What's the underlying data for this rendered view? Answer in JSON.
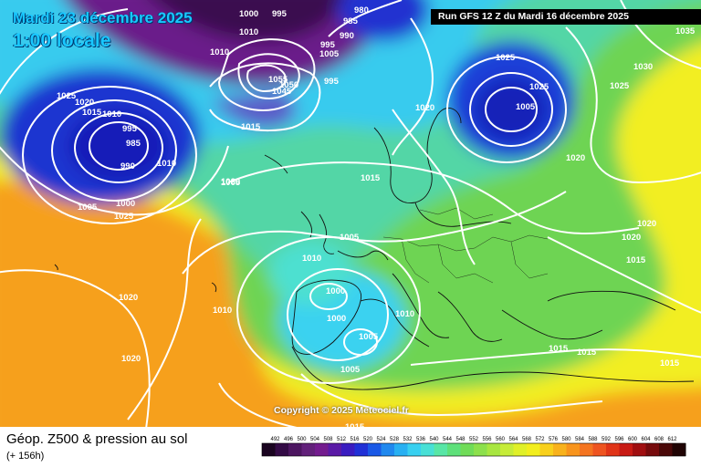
{
  "header": {
    "date_label": "Mardi 23 décembre 2025",
    "local_time": "1:00 locale",
    "run_label": "Run GFS 12 Z du Mardi 16 décembre 2025"
  },
  "map": {
    "copyright": "Copyright © 2025 Meteociel.fr",
    "pressure_labels": [
      "1000",
      "1010",
      "995",
      "980",
      "985",
      "990",
      "1010",
      "995",
      "1005",
      "1055",
      "1050",
      "1045",
      "995",
      "1015",
      "1025",
      "1020",
      "1015",
      "1010",
      "995",
      "985",
      "990",
      "1010",
      "1005",
      "1000",
      "1005",
      "1025",
      "1015",
      "1005",
      "1010",
      "1020",
      "1025",
      "1025",
      "1035",
      "1030",
      "1025",
      "1020",
      "1020",
      "1020",
      "1015",
      "1005",
      "1000",
      "1000",
      "1005",
      "1010",
      "1005",
      "1015",
      "1015",
      "1015",
      "1015",
      "1020",
      "1020",
      "1010",
      "1020"
    ],
    "colors": {
      "deep_purple": "#2a0a3a",
      "purple": "#6a1a86",
      "blue": "#1428c8",
      "cyan": "#3ad2f0",
      "green": "#4ec850",
      "yellow": "#eef020",
      "orange": "#f7a21a"
    }
  },
  "footer": {
    "param_title": "Géop. Z500 & pression au sol",
    "forecast_hour": "(+ 156h)",
    "legend": {
      "ticks": [
        "492",
        "496",
        "500",
        "504",
        "508",
        "512",
        "516",
        "520",
        "524",
        "528",
        "532",
        "536",
        "540",
        "544",
        "548",
        "552",
        "556",
        "560",
        "564",
        "568",
        "572",
        "576",
        "580",
        "584",
        "588",
        "592",
        "596",
        "600",
        "604",
        "608",
        "612"
      ],
      "colors": [
        "#1a0420",
        "#330a45",
        "#4c1560",
        "#62207a",
        "#731b8e",
        "#5a1aa6",
        "#3a1cc0",
        "#2030d6",
        "#1a58e6",
        "#2088ee",
        "#28b0f2",
        "#38d0f0",
        "#48e0d6",
        "#58e6a6",
        "#5ee07a",
        "#70dc58",
        "#8ce04c",
        "#a8e640",
        "#c6ec38",
        "#e0f028",
        "#f2ee1e",
        "#f8d01c",
        "#f8b21c",
        "#f8941c",
        "#f47420",
        "#ee5420",
        "#e03418",
        "#c81a14",
        "#a00e10",
        "#760a0c",
        "#4a0808",
        "#200404"
      ]
    }
  }
}
